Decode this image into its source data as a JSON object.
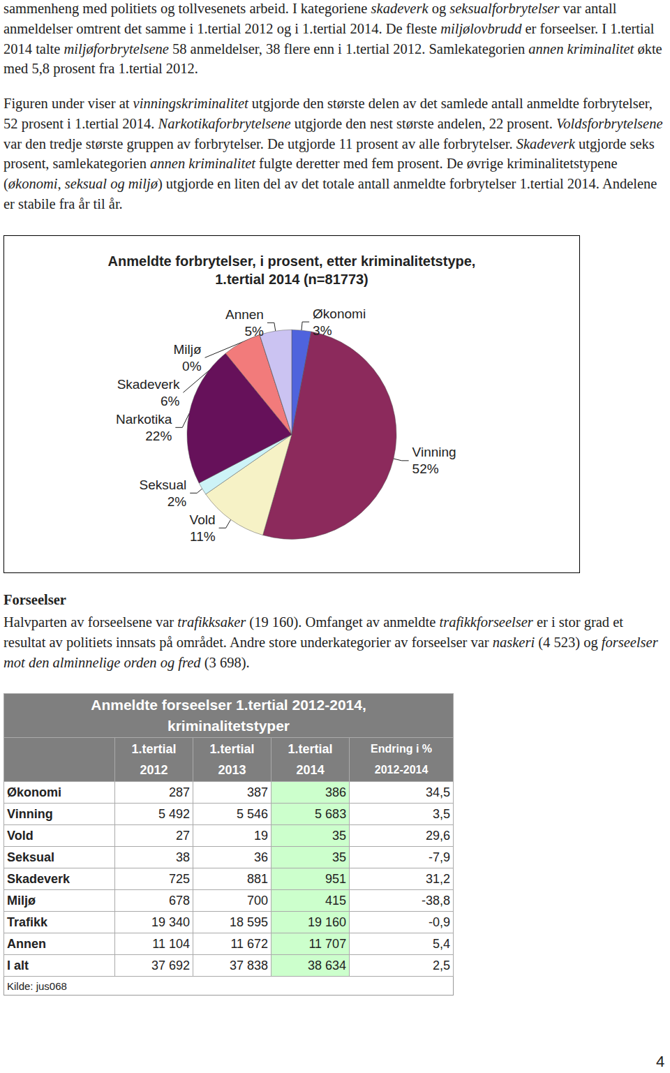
{
  "paragraphs_top": [
    [
      {
        "text": "sammenheng med politiets og tollvesenets arbeid. I kategoriene ",
        "italic": false
      },
      {
        "text": "skadeverk",
        "italic": true
      },
      {
        "text": " og ",
        "italic": false
      },
      {
        "text": "seksualforbrytelser",
        "italic": true
      },
      {
        "text": " var antall anmeldelser omtrent det samme i 1.tertial 2012 og i 1.tertial 2014. De fleste ",
        "italic": false
      },
      {
        "text": "miljølovbrudd",
        "italic": true
      },
      {
        "text": " er forseelser. I 1.tertial 2014 talte ",
        "italic": false
      },
      {
        "text": "miljøforbrytelsene",
        "italic": true
      },
      {
        "text": " 58 anmeldelser, 38 flere enn i 1.tertial 2012. Samlekategorien ",
        "italic": false
      },
      {
        "text": "annen kriminalitet",
        "italic": true
      },
      {
        "text": " økte med 5,8 prosent fra 1.tertial 2012.",
        "italic": false
      }
    ],
    [
      {
        "text": "Figuren under viser at ",
        "italic": false
      },
      {
        "text": "vinningskriminalitet",
        "italic": true
      },
      {
        "text": " utgjorde den største delen av det samlede antall anmeldte forbrytelser, 52 prosent i 1.tertial 2014. ",
        "italic": false
      },
      {
        "text": "Narkotikaforbrytelsene",
        "italic": true
      },
      {
        "text": " utgjorde den nest største andelen, 22 prosent. ",
        "italic": false
      },
      {
        "text": "Voldsforbrytelsene",
        "italic": true
      },
      {
        "text": " var den tredje største gruppen av forbrytelser. De utgjorde 11 prosent av alle forbrytelser. ",
        "italic": false
      },
      {
        "text": "Skadeverk",
        "italic": true
      },
      {
        "text": " utgjorde seks prosent, samlekategorien ",
        "italic": false
      },
      {
        "text": "annen kriminalitet",
        "italic": true
      },
      {
        "text": " fulgte deretter med fem prosent. De øvrige kriminalitetstypene (",
        "italic": false
      },
      {
        "text": "økonomi, seksual og miljø",
        "italic": true
      },
      {
        "text": ") utgjorde en liten del av det totale antall anmeldte forbrytelser 1.tertial 2014. Andelene er stabile fra år til år.",
        "italic": false
      }
    ]
  ],
  "chart_data": {
    "type": "pie",
    "title": "Anmeldte forbrytelser, i prosent, etter kriminalitetstype,\n1.tertial 2014 (n=81773)",
    "categories": [
      "Økonomi",
      "Vinning",
      "Vold",
      "Seksual",
      "Narkotika",
      "Skadeverk",
      "Miljø",
      "Annen"
    ],
    "values": [
      3,
      52,
      11,
      2,
      22,
      6,
      0,
      5
    ],
    "value_labels": [
      "3%",
      "52%",
      "11%",
      "2%",
      "22%",
      "6%",
      "0%",
      "5%"
    ],
    "colors": [
      "#4f63dd",
      "#8c2a5c",
      "#f6f2c6",
      "#cdf3f7",
      "#66115a",
      "#f27b7b",
      "#cc4444",
      "#cbc3f2"
    ],
    "data_labels": true
  },
  "section": {
    "heading": "Forseelser",
    "paragraph": [
      {
        "text": "Halvparten av forseelsene var ",
        "italic": false
      },
      {
        "text": "trafikksaker",
        "italic": true
      },
      {
        "text": " (19 160). Omfanget av anmeldte ",
        "italic": false
      },
      {
        "text": "trafikkforseelser",
        "italic": true
      },
      {
        "text": " er i stor grad et resultat av politiets innsats på området. Andre store underkategorier av forseelser var ",
        "italic": false
      },
      {
        "text": "naskeri",
        "italic": true
      },
      {
        "text": " (4 523) og ",
        "italic": false
      },
      {
        "text": "forseelser mot den alminnelige orden og fred",
        "italic": true
      },
      {
        "text": " (3 698).",
        "italic": false
      }
    ]
  },
  "table": {
    "title": [
      "Anmeldte forseelser 1.tertial 2012-2014,",
      "kriminalitetstyper"
    ],
    "header": [
      [
        "1.tertial",
        "2012"
      ],
      [
        "1.tertial",
        "2013"
      ],
      [
        "1.tertial",
        "2014"
      ],
      [
        "Endring i %",
        "2012-2014"
      ]
    ],
    "rows": [
      [
        "Økonomi",
        "287",
        "387",
        "386",
        "34,5"
      ],
      [
        "Vinning",
        "5 492",
        "5 546",
        "5 683",
        "3,5"
      ],
      [
        "Vold",
        "27",
        "19",
        "35",
        "29,6"
      ],
      [
        "Seksual",
        "38",
        "36",
        "35",
        "-7,9"
      ],
      [
        "Skadeverk",
        "725",
        "881",
        "951",
        "31,2"
      ],
      [
        "Miljø",
        "678",
        "700",
        "415",
        "-38,8"
      ],
      [
        "Trafikk",
        "19 340",
        "18 595",
        "19 160",
        "-0,9"
      ],
      [
        "Annen",
        "11 104",
        "11 672",
        "11 707",
        "5,4"
      ],
      [
        "I alt",
        "37 692",
        "37 838",
        "38 634",
        "2,5"
      ]
    ],
    "source": "Kilde: jus068"
  },
  "page_number": "4"
}
